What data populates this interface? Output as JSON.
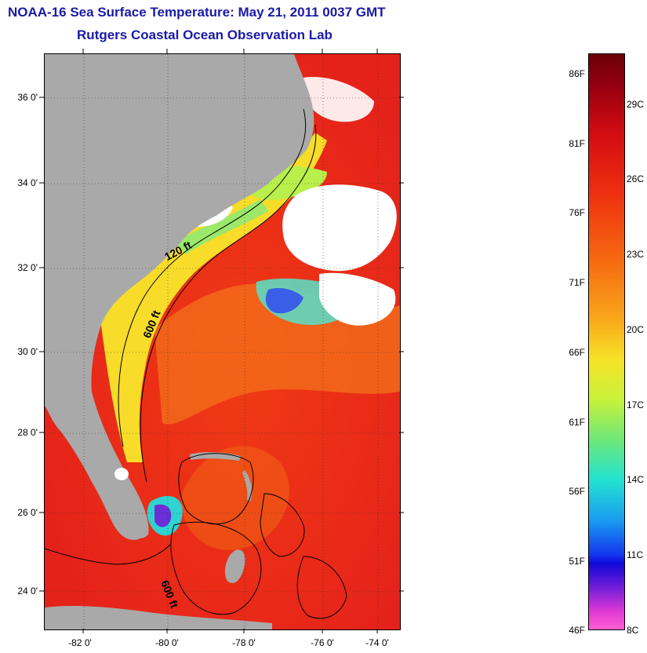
{
  "title": {
    "line1": "NOAA-16 Sea Surface Temperature:  May 21, 2011 0037 GMT",
    "line2": "Rutgers Coastal Ocean Observation Lab"
  },
  "map": {
    "lat_labels": [
      "36 0'",
      "34 0'",
      "32 0'",
      "30 0'",
      "28 0'",
      "26 0'",
      "24 0'"
    ],
    "lon_labels": [
      "-82 0'",
      "-80 0'",
      "-78 0'",
      "-76 0'",
      "-74 0'"
    ],
    "contour_labels": [
      "120 ft",
      "600 ft",
      "600 ft"
    ],
    "land_color": "#a9a9a9",
    "ocean_color": "#e8261a",
    "cloud_color": "#ffffff"
  },
  "colorbar": {
    "fahrenheit_labels": [
      "86F",
      "81F",
      "76F",
      "71F",
      "66F",
      "61F",
      "56F",
      "51F",
      "46F"
    ],
    "celsius_labels": [
      "29C",
      "26C",
      "23C",
      "20C",
      "17C",
      "14C",
      "11C",
      "8C"
    ]
  }
}
